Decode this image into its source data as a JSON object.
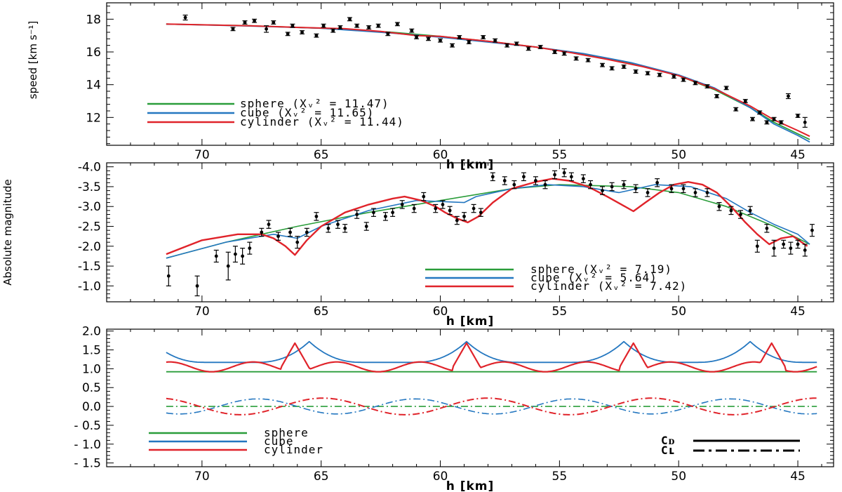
{
  "figure": {
    "colors": {
      "sphere": "#2a9d3a",
      "cube": "#2477c0",
      "cylinder": "#e0232a",
      "points": "#000000"
    }
  },
  "chart_data": [
    {
      "type": "scatter",
      "ylabel": "speed [km s⁻¹]",
      "xlabel": "h  [km]",
      "xlim": [
        74,
        43.5
      ],
      "ylim": [
        10.3,
        19.0
      ],
      "xticks": [
        70,
        65,
        60,
        55,
        50,
        45
      ],
      "yticks": [
        12,
        14,
        16,
        18
      ],
      "legend_position": "bottom-left",
      "observations": {
        "x": [
          70.7,
          68.7,
          68.2,
          67.8,
          67.3,
          67.0,
          66.4,
          66.2,
          65.8,
          65.2,
          64.9,
          64.5,
          64.2,
          63.8,
          63.5,
          63.0,
          62.6,
          62.2,
          61.8,
          61.2,
          61.0,
          60.5,
          60.0,
          59.5,
          59.2,
          58.8,
          58.2,
          57.7,
          57.2,
          56.8,
          56.3,
          55.8,
          55.2,
          54.8,
          54.3,
          53.8,
          53.2,
          52.8,
          52.3,
          51.8,
          51.3,
          50.8,
          50.2,
          49.8,
          49.3,
          48.8,
          48.4,
          48.0,
          47.6,
          47.2,
          46.9,
          46.6,
          46.3,
          46.0,
          45.7,
          45.4,
          45.0,
          44.7
        ],
        "y": [
          18.1,
          17.4,
          17.8,
          17.9,
          17.4,
          17.8,
          17.1,
          17.6,
          17.2,
          17.0,
          17.6,
          17.3,
          17.5,
          18.0,
          17.6,
          17.5,
          17.6,
          17.1,
          17.7,
          17.3,
          16.9,
          16.8,
          16.7,
          16.4,
          16.9,
          16.6,
          16.9,
          16.7,
          16.4,
          16.5,
          16.2,
          16.3,
          16.0,
          15.9,
          15.6,
          15.5,
          15.2,
          15.0,
          15.1,
          14.8,
          14.7,
          14.6,
          14.5,
          14.3,
          14.1,
          13.9,
          13.3,
          13.8,
          12.5,
          13.0,
          11.9,
          12.3,
          11.7,
          11.9,
          11.7,
          13.3,
          12.1,
          11.7
        ],
        "yerr": [
          0.15,
          0.1,
          0.1,
          0.1,
          0.2,
          0.1,
          0.1,
          0.1,
          0.1,
          0.1,
          0.1,
          0.1,
          0.1,
          0.1,
          0.1,
          0.1,
          0.1,
          0.1,
          0.1,
          0.1,
          0.1,
          0.1,
          0.1,
          0.1,
          0.1,
          0.1,
          0.1,
          0.1,
          0.1,
          0.1,
          0.1,
          0.1,
          0.1,
          0.1,
          0.1,
          0.1,
          0.1,
          0.1,
          0.1,
          0.1,
          0.1,
          0.1,
          0.1,
          0.1,
          0.1,
          0.1,
          0.1,
          0.1,
          0.1,
          0.1,
          0.1,
          0.1,
          0.1,
          0.1,
          0.1,
          0.15,
          0.1,
          0.3
        ]
      },
      "series": [
        {
          "key": "sphere",
          "label": "sphere (Xᵥ² = 11.47)",
          "color": "#2a9d3a",
          "x": [
            71.5,
            68,
            65,
            62,
            60,
            58,
            56,
            54,
            52,
            50,
            48.5,
            47,
            46,
            45,
            44.5
          ],
          "y": [
            17.7,
            17.6,
            17.45,
            17.2,
            16.95,
            16.65,
            16.3,
            15.85,
            15.3,
            14.55,
            13.7,
            12.6,
            11.7,
            11.0,
            10.65
          ]
        },
        {
          "key": "cube",
          "label": "cube (Xᵥ² = 11.65)",
          "color": "#2477c0",
          "x": [
            71.5,
            68,
            65,
            62,
            60,
            58,
            56,
            54,
            52,
            50,
            48.5,
            47,
            46,
            45,
            44.5
          ],
          "y": [
            17.7,
            17.58,
            17.45,
            17.15,
            16.9,
            16.6,
            16.3,
            15.9,
            15.35,
            14.6,
            13.8,
            12.6,
            11.6,
            10.9,
            10.5
          ]
        },
        {
          "key": "cylinder",
          "label": "cylinder (Xᵥ² = 11.44)",
          "color": "#e0232a",
          "x": [
            71.5,
            68,
            66,
            64,
            62.5,
            61,
            60,
            58,
            56,
            54.5,
            53,
            51.5,
            50,
            48.5,
            47,
            46,
            45,
            44.5
          ],
          "y": [
            17.7,
            17.6,
            17.5,
            17.42,
            17.25,
            17.0,
            16.95,
            16.65,
            16.3,
            15.95,
            15.55,
            15.1,
            14.55,
            13.75,
            12.7,
            11.85,
            11.2,
            10.85
          ]
        }
      ]
    },
    {
      "type": "scatter",
      "ylabel": "Absolute magnitude",
      "xlabel": "h  [km]",
      "xlim": [
        74,
        43.5
      ],
      "ylim": [
        0.6,
        4.1
      ],
      "y_inverted": true,
      "xticks": [
        70,
        65,
        60,
        55,
        50,
        45
      ],
      "yticks": [
        1.0,
        1.5,
        2.0,
        2.5,
        3.0,
        3.5,
        4.0
      ],
      "yticklabels": [
        "-1.0",
        "-1.5",
        "-2.0",
        "-2.5",
        "-3.0",
        "-3.5",
        "-4.0"
      ],
      "legend_position": "bottom-right",
      "observations": {
        "x": [
          71.4,
          70.2,
          69.4,
          68.9,
          68.6,
          68.3,
          68.0,
          67.5,
          67.2,
          66.8,
          66.3,
          66.0,
          65.6,
          65.2,
          64.7,
          64.3,
          64.0,
          63.5,
          63.1,
          62.8,
          62.3,
          62.0,
          61.6,
          61.1,
          60.7,
          60.2,
          59.9,
          59.6,
          59.3,
          59.0,
          58.6,
          58.3,
          57.8,
          57.3,
          56.9,
          56.5,
          56.0,
          55.6,
          55.2,
          54.8,
          54.5,
          54.0,
          53.7,
          53.2,
          52.8,
          52.3,
          51.8,
          51.3,
          50.9,
          50.3,
          49.8,
          49.3,
          48.8,
          48.3,
          47.8,
          47.4,
          47.0,
          46.7,
          46.3,
          46.0,
          45.6,
          45.3,
          45.0,
          44.7,
          44.4
        ],
        "y": [
          1.25,
          1.0,
          1.75,
          1.5,
          1.8,
          1.75,
          1.95,
          2.35,
          2.55,
          2.25,
          2.35,
          2.1,
          2.35,
          2.75,
          2.45,
          2.55,
          2.45,
          2.8,
          2.5,
          2.85,
          2.75,
          2.85,
          3.05,
          2.95,
          3.25,
          2.95,
          3.05,
          2.9,
          2.65,
          2.75,
          2.95,
          2.85,
          3.75,
          3.65,
          3.55,
          3.75,
          3.65,
          3.55,
          3.8,
          3.85,
          3.75,
          3.7,
          3.55,
          3.4,
          3.5,
          3.55,
          3.45,
          3.35,
          3.6,
          3.45,
          3.45,
          3.35,
          3.35,
          3.0,
          2.9,
          2.8,
          2.9,
          2.0,
          2.45,
          1.95,
          2.05,
          1.95,
          2.05,
          1.9,
          2.4
        ],
        "yerr": [
          0.25,
          0.25,
          0.15,
          0.35,
          0.2,
          0.2,
          0.15,
          0.1,
          0.1,
          0.1,
          0.1,
          0.15,
          0.1,
          0.1,
          0.1,
          0.1,
          0.1,
          0.1,
          0.1,
          0.1,
          0.1,
          0.1,
          0.1,
          0.1,
          0.1,
          0.1,
          0.1,
          0.1,
          0.1,
          0.1,
          0.1,
          0.1,
          0.1,
          0.1,
          0.1,
          0.1,
          0.1,
          0.1,
          0.1,
          0.1,
          0.1,
          0.1,
          0.1,
          0.1,
          0.1,
          0.1,
          0.1,
          0.1,
          0.1,
          0.1,
          0.1,
          0.1,
          0.1,
          0.1,
          0.1,
          0.1,
          0.1,
          0.15,
          0.1,
          0.2,
          0.1,
          0.15,
          0.1,
          0.15,
          0.15
        ]
      },
      "series": [
        {
          "key": "sphere",
          "label": "sphere (Xᵥ² = 7.19)",
          "color": "#2a9d3a",
          "x": [
            71.5,
            69,
            66,
            63,
            60,
            57,
            55,
            52,
            50,
            48,
            46,
            44.5
          ],
          "y": [
            1.7,
            2.1,
            2.5,
            2.85,
            3.15,
            3.45,
            3.55,
            3.5,
            3.35,
            3.0,
            2.5,
            2.05
          ]
        },
        {
          "key": "cube",
          "label": "cube (Xᵥ² = 5.64)",
          "color": "#2477c0",
          "x": [
            71.5,
            69,
            67,
            66,
            65,
            63,
            61,
            59,
            58.5,
            57,
            55.5,
            54,
            52.5,
            51,
            49.5,
            48,
            47,
            46,
            45,
            44.5
          ],
          "y": [
            1.7,
            2.1,
            2.3,
            2.2,
            2.5,
            2.9,
            3.15,
            3.1,
            3.25,
            3.45,
            3.55,
            3.5,
            3.35,
            3.55,
            3.5,
            3.2,
            2.85,
            2.55,
            2.3,
            2.05
          ]
        },
        {
          "key": "cylinder",
          "label": "cylinder (Xᵥ² = 7.42)",
          "color": "#e0232a",
          "x": [
            71.5,
            70,
            68.5,
            67.5,
            67,
            66.5,
            66.1,
            65.6,
            65,
            64,
            63,
            62,
            61.5,
            60.8,
            60.2,
            59.8,
            59.3,
            58.85,
            58.4,
            57.8,
            57,
            56,
            55.3,
            54.6,
            53.8,
            53,
            52.4,
            51.9,
            51.4,
            50.8,
            50.2,
            49.6,
            49.0,
            48.4,
            47.8,
            47.2,
            46.7,
            46.2,
            45.7,
            45.2,
            44.6
          ],
          "y": [
            1.8,
            2.15,
            2.3,
            2.3,
            2.2,
            2.0,
            1.78,
            2.15,
            2.5,
            2.85,
            3.05,
            3.2,
            3.25,
            3.15,
            3.0,
            2.85,
            2.7,
            2.6,
            2.75,
            3.1,
            3.45,
            3.62,
            3.7,
            3.65,
            3.5,
            3.25,
            3.05,
            2.88,
            3.1,
            3.35,
            3.55,
            3.62,
            3.55,
            3.35,
            3.0,
            2.6,
            2.3,
            2.05,
            2.2,
            2.25,
            2.0
          ]
        }
      ]
    },
    {
      "type": "line",
      "xlabel": "h  [km]",
      "xlim": [
        74,
        43.5
      ],
      "ylim": [
        -1.6,
        2.05
      ],
      "xticks": [
        70,
        65,
        60,
        55,
        50,
        45
      ],
      "yticks": [
        -1.5,
        -1.0,
        -0.5,
        0.0,
        0.5,
        1.0,
        1.5,
        2.0
      ],
      "yticklabels": [
        "- 1.5",
        "- 1.0",
        "- 0.5",
        "0.0",
        "0.5",
        "1.0",
        "1.5",
        "2.0"
      ],
      "legend_position": "bottom-left",
      "coefficients": [
        {
          "label": "Cᴅ",
          "style": "solid"
        },
        {
          "label": "Cʟ",
          "style": "dash-dot"
        }
      ],
      "series": [
        {
          "key": "sphere",
          "label": "sphere",
          "color": "#2a9d3a"
        },
        {
          "key": "cube",
          "label": "cube",
          "color": "#2477c0"
        },
        {
          "key": "cylinder",
          "label": "cylinder",
          "color": "#e0232a"
        }
      ]
    }
  ]
}
